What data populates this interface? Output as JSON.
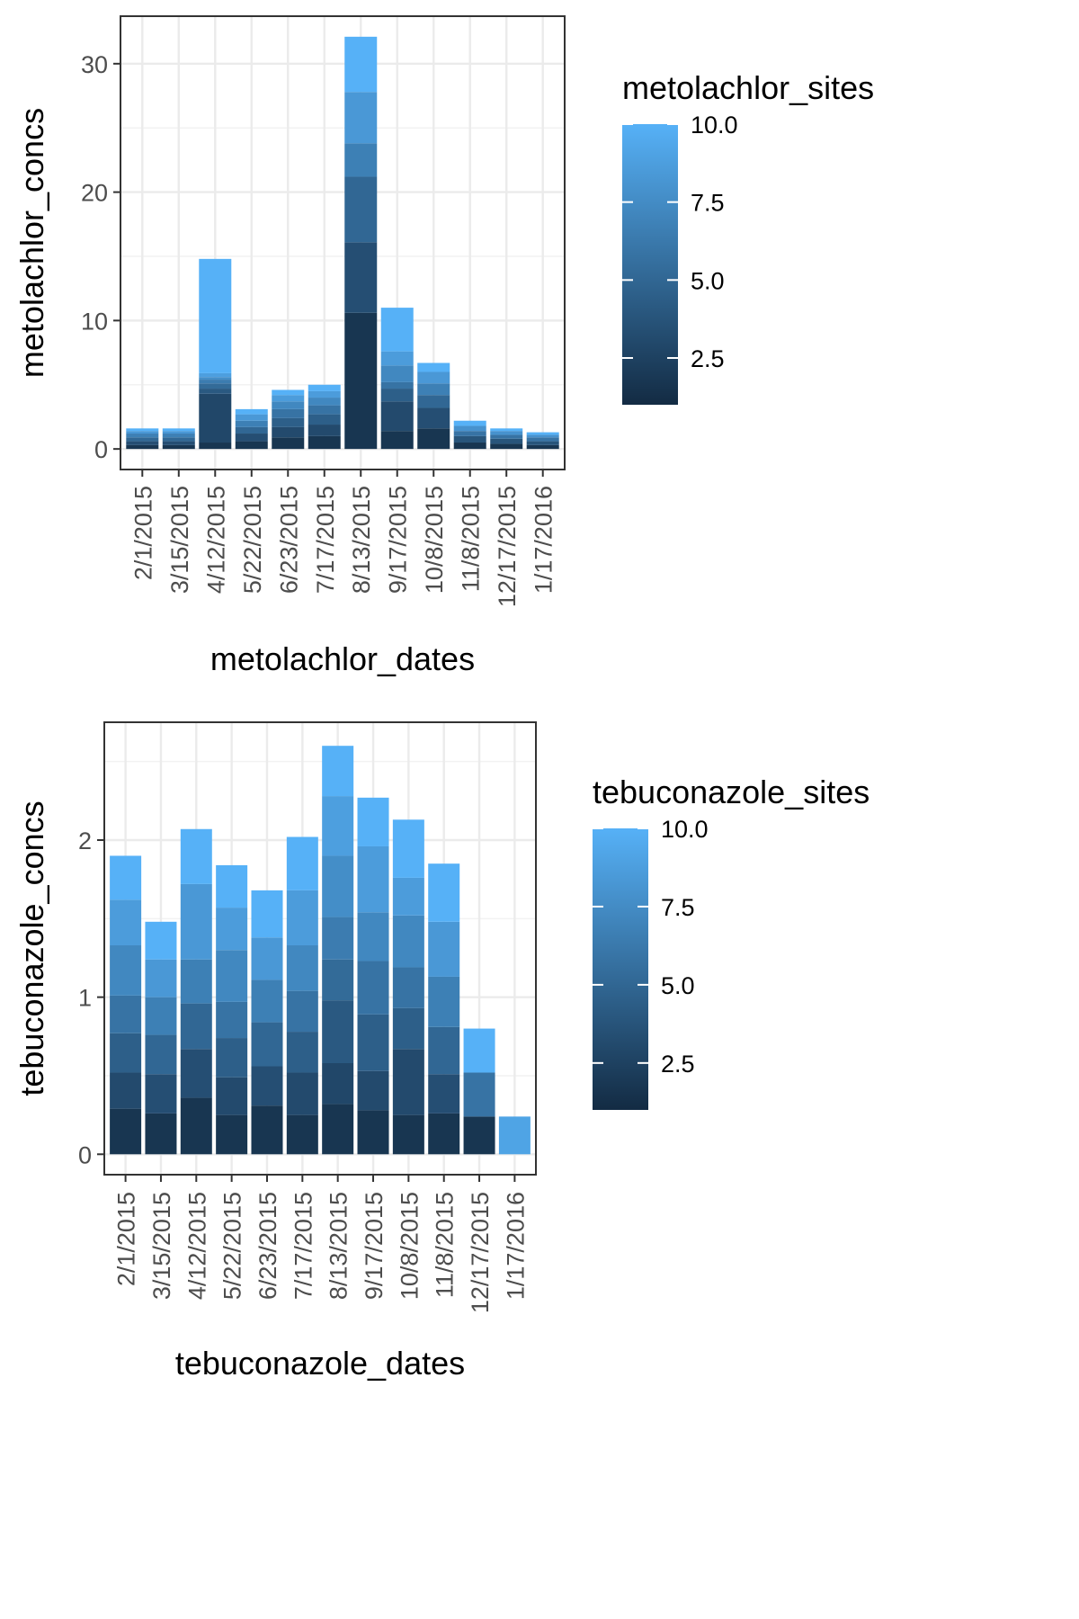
{
  "chart_data": [
    {
      "type": "bar",
      "stacked": true,
      "title": "",
      "xlabel": "metolachlor_dates",
      "ylabel": "metolachlor_concs",
      "categories": [
        "2/1/2015",
        "3/15/2015",
        "4/12/2015",
        "5/22/2015",
        "6/23/2015",
        "7/17/2015",
        "8/13/2015",
        "9/17/2015",
        "10/8/2015",
        "11/8/2015",
        "12/17/2015",
        "1/17/2016"
      ],
      "totals": [
        1.6,
        1.6,
        14.9,
        3.1,
        4.6,
        5.0,
        32.1,
        11.0,
        6.7,
        2.2,
        1.6,
        1.3
      ],
      "stacks": [
        [
          0.3,
          0.3,
          0.3,
          0.3,
          0.2,
          0.2
        ],
        [
          0.3,
          0.3,
          0.3,
          0.3,
          0.2,
          0.2
        ],
        [
          0.5,
          3.8,
          0.4,
          0.4,
          0.3,
          0.2,
          0.3,
          8.9
        ],
        [
          0.6,
          0.6,
          0.5,
          0.5,
          0.5,
          0.4
        ],
        [
          0.9,
          0.8,
          0.7,
          0.7,
          0.6,
          0.5,
          0.4
        ],
        [
          1.0,
          0.9,
          0.8,
          0.7,
          0.6,
          0.5,
          0.5
        ],
        [
          10.6,
          5.5,
          5.1,
          2.6,
          4.0,
          4.3
        ],
        [
          1.4,
          2.3,
          1.0,
          0.5,
          1.3,
          1.1,
          3.4
        ],
        [
          1.6,
          1.6,
          1.0,
          0.9,
          0.9,
          0.7
        ],
        [
          0.5,
          0.5,
          0.4,
          0.4,
          0.4
        ],
        [
          0.4,
          0.4,
          0.3,
          0.3,
          0.2
        ],
        [
          0.3,
          0.3,
          0.3,
          0.2,
          0.2
        ]
      ],
      "yticks": [
        0,
        10,
        20,
        30
      ],
      "ylim": [
        -1.6,
        33.7
      ],
      "fill_scale": {
        "title": "metolachlor_sites",
        "low_color": "#132B43",
        "high_color": "#56B1F7",
        "range": [
          1,
          10
        ],
        "breaks": [
          "2.5",
          "5.0",
          "7.5",
          "10.0"
        ]
      },
      "grid": true
    },
    {
      "type": "bar",
      "stacked": true,
      "title": "",
      "xlabel": "tebuconazole_dates",
      "ylabel": "tebuconazole_concs",
      "categories": [
        "2/1/2015",
        "3/15/2015",
        "4/12/2015",
        "5/22/2015",
        "6/23/2015",
        "7/17/2015",
        "8/13/2015",
        "9/17/2015",
        "10/8/2015",
        "11/8/2015",
        "12/17/2015",
        "1/17/2016"
      ],
      "totals": [
        1.9,
        1.48,
        2.07,
        1.84,
        1.68,
        2.02,
        2.6,
        2.27,
        2.13,
        1.85,
        0.8,
        0.24
      ],
      "stacks": [
        [
          0.29,
          0.23,
          0.25,
          0.24,
          0.32,
          0.29,
          0.28
        ],
        [
          0.26,
          0.25,
          0.25,
          0.24,
          0.24,
          0.24
        ],
        [
          0.36,
          0.31,
          0.29,
          0.28,
          0.48,
          0.35
        ],
        [
          0.25,
          0.24,
          0.25,
          0.23,
          0.33,
          0.27,
          0.27
        ],
        [
          0.31,
          0.25,
          0.28,
          0.27,
          0.27,
          0.3
        ],
        [
          0.25,
          0.27,
          0.26,
          0.26,
          0.29,
          0.35,
          0.34
        ],
        [
          0.32,
          0.26,
          0.4,
          0.26,
          0.27,
          0.39,
          0.38,
          0.32
        ],
        [
          0.28,
          0.25,
          0.36,
          0.34,
          0.31,
          0.42,
          0.31
        ],
        [
          0.25,
          0.42,
          0.26,
          0.26,
          0.33,
          0.24,
          0.37
        ],
        [
          0.26,
          0.25,
          0.3,
          0.32,
          0.35,
          0.37
        ],
        [
          0.24,
          0.28,
          0.28
        ],
        [
          0.24
        ]
      ],
      "stack_colors": [
        [],
        [],
        [],
        [],
        [],
        [],
        [],
        [],
        [],
        [],
        [],
        [
          0.9
        ]
      ],
      "yticks": [
        0,
        1,
        2
      ],
      "ylim": [
        -0.13,
        2.75
      ],
      "fill_scale": {
        "title": "tebuconazole_sites",
        "low_color": "#132B43",
        "high_color": "#56B1F7",
        "range": [
          1,
          10
        ],
        "breaks": [
          "2.5",
          "5.0",
          "7.5",
          "10.0"
        ]
      },
      "grid": true
    }
  ]
}
